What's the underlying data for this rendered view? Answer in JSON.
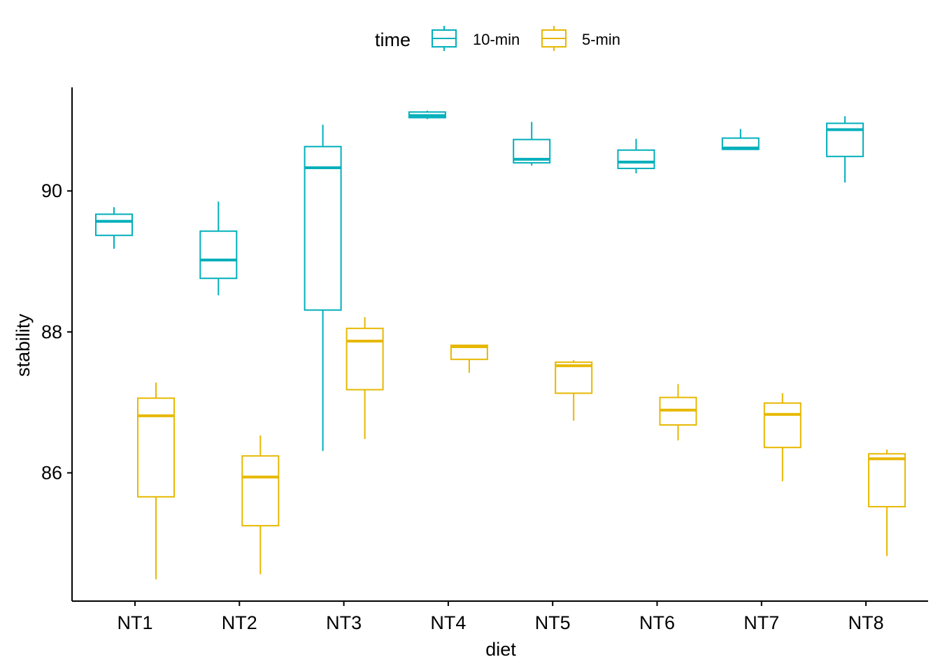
{
  "chart_data": {
    "type": "boxplot",
    "title": "",
    "xlabel": "diet",
    "ylabel": "stability",
    "categories": [
      "NT1",
      "NT2",
      "NT3",
      "NT4",
      "NT5",
      "NT6",
      "NT7",
      "NT8"
    ],
    "yticks": [
      86,
      88,
      90
    ],
    "ylim": [
      84.18,
      91.47
    ],
    "grid": false,
    "legend": {
      "title": "time",
      "position": "top"
    },
    "series": [
      {
        "name": "10-min",
        "color": "#00AFBB",
        "boxes": [
          {
            "min": 89.18,
            "q1": 89.37,
            "median": 89.57,
            "q3": 89.67,
            "max": 89.77
          },
          {
            "min": 88.52,
            "q1": 88.76,
            "median": 89.02,
            "q3": 89.43,
            "max": 89.85
          },
          {
            "min": 86.31,
            "q1": 88.31,
            "median": 90.33,
            "q3": 90.63,
            "max": 90.94
          },
          {
            "min": 91.02,
            "q1": 91.04,
            "median": 91.07,
            "q3": 91.12,
            "max": 91.14
          },
          {
            "min": 90.36,
            "q1": 90.4,
            "median": 90.45,
            "q3": 90.73,
            "max": 90.98
          },
          {
            "min": 90.25,
            "q1": 90.32,
            "median": 90.41,
            "q3": 90.58,
            "max": 90.74
          },
          {
            "min": 90.59,
            "q1": 90.59,
            "median": 90.61,
            "q3": 90.75,
            "max": 90.88
          },
          {
            "min": 90.12,
            "q1": 90.49,
            "median": 90.87,
            "q3": 90.96,
            "max": 91.06
          }
        ]
      },
      {
        "name": "5-min",
        "color": "#E7B800",
        "boxes": [
          {
            "min": 84.49,
            "q1": 85.66,
            "median": 86.81,
            "q3": 87.06,
            "max": 87.28
          },
          {
            "min": 84.56,
            "q1": 85.25,
            "median": 85.94,
            "q3": 86.24,
            "max": 86.53
          },
          {
            "min": 86.48,
            "q1": 87.18,
            "median": 87.87,
            "q3": 88.05,
            "max": 88.21
          },
          {
            "min": 87.42,
            "q1": 87.61,
            "median": 87.79,
            "q3": 87.81,
            "max": 87.82
          },
          {
            "min": 86.74,
            "q1": 87.13,
            "median": 87.52,
            "q3": 87.57,
            "max": 87.6
          },
          {
            "min": 86.46,
            "q1": 86.68,
            "median": 86.89,
            "q3": 87.07,
            "max": 87.26
          },
          {
            "min": 85.88,
            "q1": 86.36,
            "median": 86.83,
            "q3": 86.99,
            "max": 87.13
          },
          {
            "min": 84.82,
            "q1": 85.52,
            "median": 86.2,
            "q3": 86.27,
            "max": 86.33
          }
        ]
      }
    ]
  }
}
